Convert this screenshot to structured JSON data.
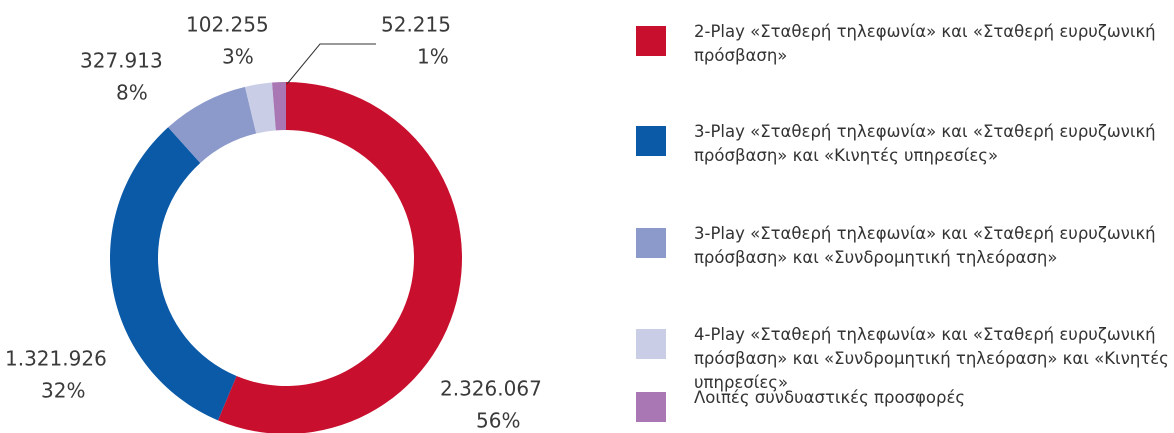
{
  "chart_data": {
    "type": "donut",
    "categories": [
      "2-Play «Σταθερή τηλεφωνία» και «Σταθερή ευρυζωνική πρόσβαση»",
      "3-Play «Σταθερή τηλεφωνία» και «Σταθερή ευρυζωνική πρόσβαση» και «Κινητές υπηρεσίες»",
      "3-Play «Σταθερή τηλεφωνία» και «Σταθερή ευρυζωνική πρόσβαση» και «Συνδρομητική τηλεόραση»",
      "4-Play «Σταθερή τηλεφωνία» και «Σταθερή ευρυζωνική πρόσβαση» και «Συνδρομητική τηλεόραση» και «Κινητές υπηρεσίες»",
      "Λοιπές συνδυαστικές προσφορές"
    ],
    "values": [
      2326067,
      1321926,
      327913,
      102255,
      52215
    ],
    "value_labels": [
      "2.326.067",
      "1.321.926",
      "327.913",
      "102.255",
      "52.215"
    ],
    "percentages": [
      56,
      32,
      8,
      3,
      1
    ],
    "percentage_labels": [
      "56%",
      "32%",
      "8%",
      "3%",
      "1%"
    ],
    "colors": [
      "#c8102e",
      "#0a5aa8",
      "#8c9acb",
      "#c9cde6",
      "#a877b4"
    ],
    "legend": "right"
  }
}
